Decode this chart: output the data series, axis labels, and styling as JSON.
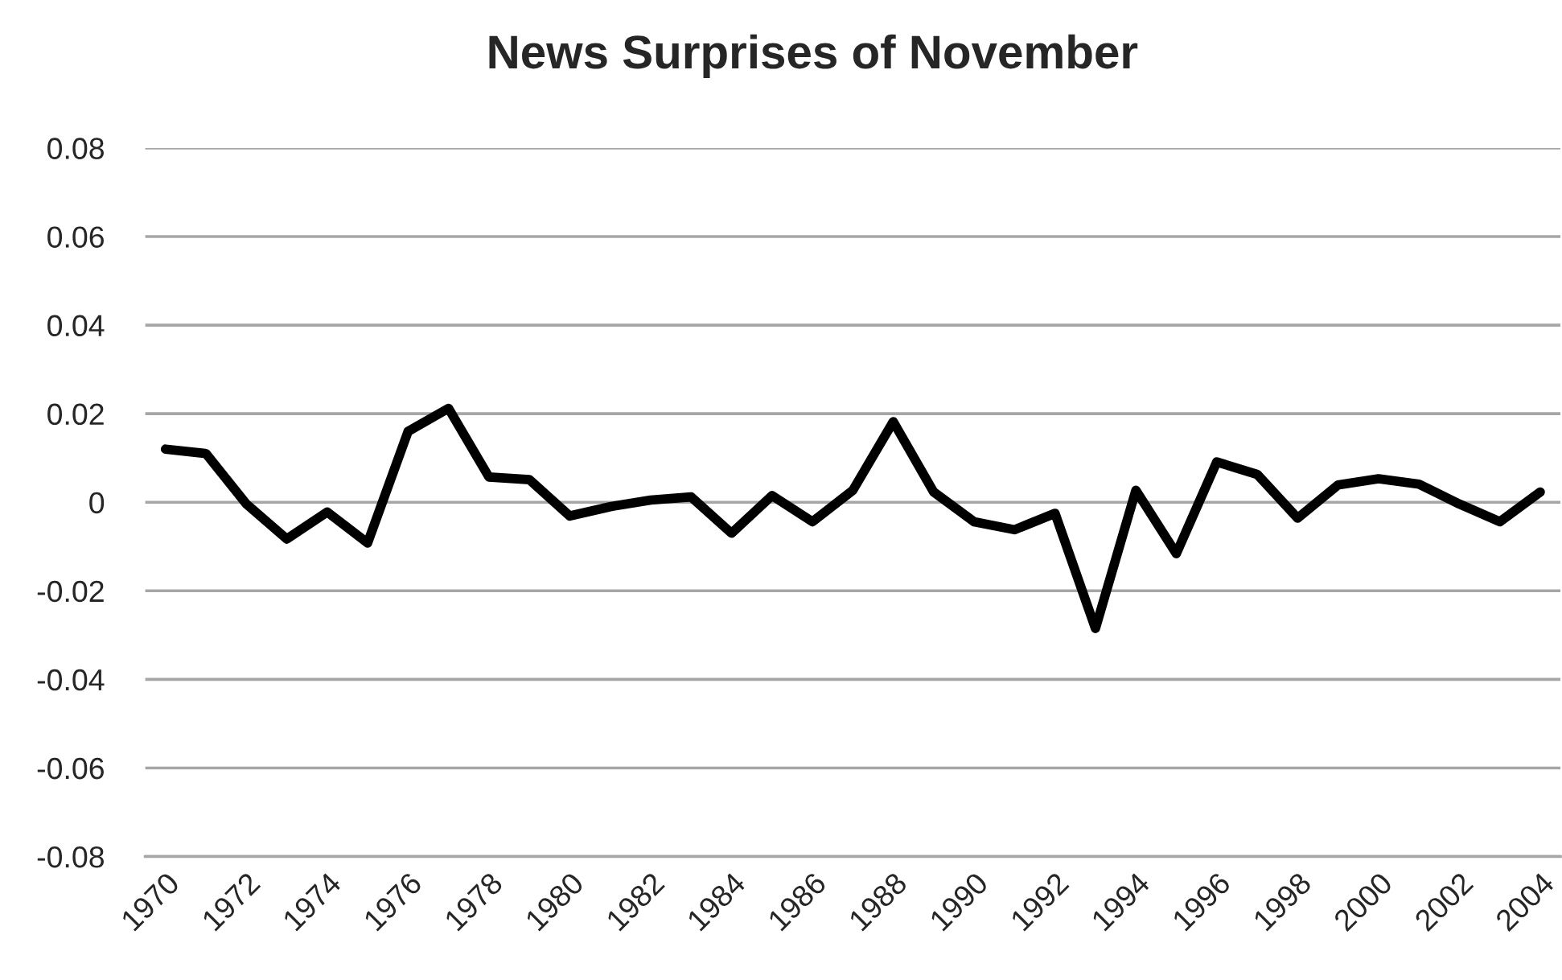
{
  "chart_data": {
    "type": "line",
    "title": "News Surprises of November",
    "categories": [
      "1970",
      null,
      "1972",
      null,
      "1974",
      null,
      "1976",
      null,
      "1978",
      null,
      "1980",
      null,
      "1982",
      null,
      "1984",
      null,
      "1986",
      null,
      "1988",
      null,
      "1990",
      null,
      "1992",
      null,
      "1994",
      null,
      "1996",
      null,
      "1998",
      null,
      "2000",
      null,
      "2002",
      null,
      "2004"
    ],
    "series": [
      {
        "color": "#000000",
        "values": [
          0.012,
          0.011,
          -0.0004,
          -0.0083,
          -0.0022,
          -0.0092,
          0.016,
          0.0212,
          0.0057,
          0.0051,
          -0.0031,
          -0.001,
          0.0005,
          0.0012,
          -0.007,
          0.0015,
          -0.0044,
          0.0027,
          0.0182,
          0.0023,
          -0.0044,
          -0.0062,
          -0.0025,
          -0.0285,
          0.0027,
          -0.0116,
          0.0091,
          0.0063,
          -0.0036,
          0.0039,
          0.0053,
          0.0041,
          -0.0004,
          -0.0044,
          0.0023
        ]
      }
    ],
    "ylim": [
      -0.08,
      0.08
    ],
    "yticks": [
      -0.08,
      -0.06,
      -0.04,
      -0.02,
      0,
      0.02,
      0.04,
      0.06,
      0.08
    ],
    "grid": "y",
    "line_style": "solid"
  }
}
